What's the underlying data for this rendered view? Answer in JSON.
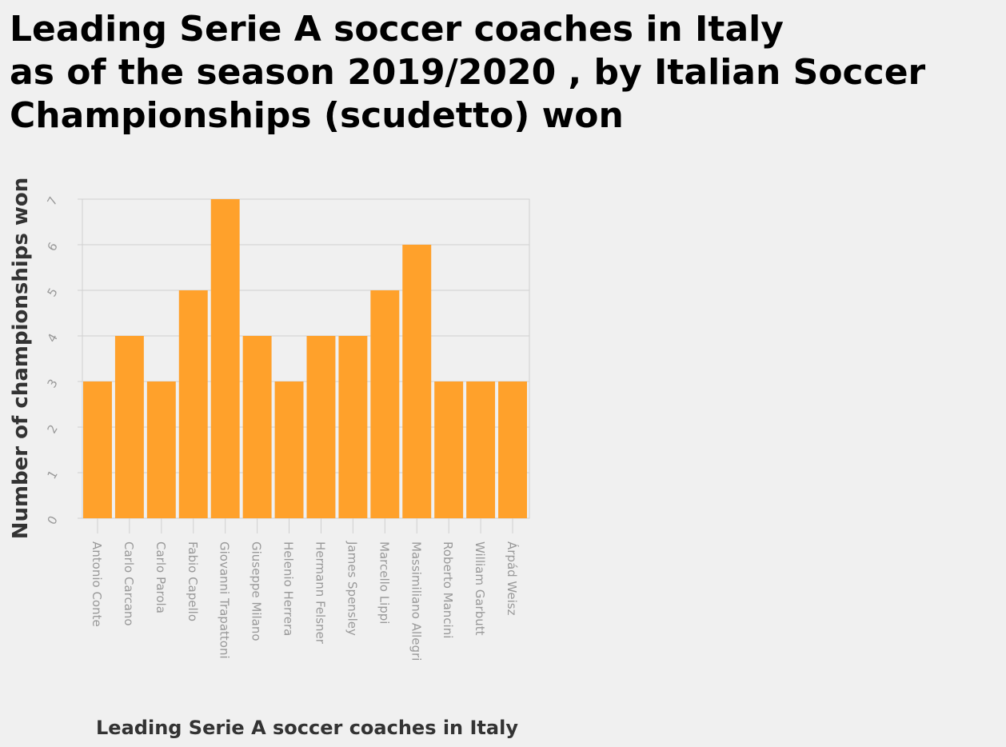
{
  "chart_data": {
    "type": "bar",
    "title": "Leading Serie A soccer coaches in Italy\nas of the season 2019/2020 , by Italian Soccer\nChampionships (scudetto) won",
    "xlabel": "Leading Serie A soccer coaches in Italy",
    "ylabel": "Number of championships won",
    "categories": [
      "Antonio Conte",
      "Carlo Carcano",
      "Carlo Parola",
      "Fabio Capello",
      "Giovanni Trapattoni",
      "Giuseppe Milano",
      "Helenio Herrera",
      "Hermann Felsner",
      "James Spensley",
      "Marcello Lippi",
      "Massimiliano Allegri",
      "Roberto Mancini",
      "William Garbutt",
      "Árpád Weisz"
    ],
    "values": [
      3,
      4,
      3,
      5,
      7,
      4,
      3,
      4,
      4,
      5,
      6,
      3,
      3,
      3
    ],
    "ylim": [
      0,
      7
    ],
    "yticks": [
      "0",
      "1",
      "2",
      "3",
      "4",
      "5",
      "6",
      "7"
    ],
    "grid": true,
    "legend": "none",
    "colors": {
      "bar": "#ffa12b",
      "grid": "#d0d0d0",
      "tick_text": "#999999",
      "axis_title": "#333333",
      "background": "#f0f0f0"
    }
  }
}
